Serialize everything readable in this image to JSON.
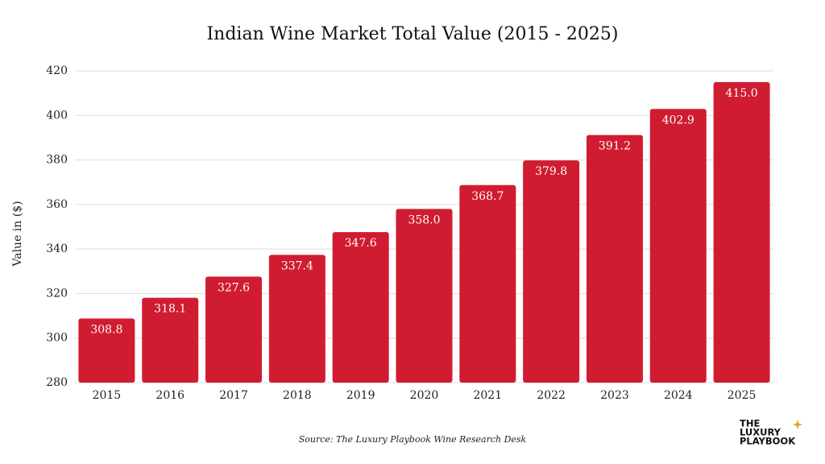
{
  "chart_data": {
    "type": "bar",
    "title": "Indian Wine Market Total Value (2015 - 2025)",
    "y_label": "Value in ($)",
    "source": "Source: The Luxury Playbook Wine Research Desk",
    "logo": [
      "THE",
      "LUXURY",
      "PLAYBOOK"
    ],
    "categories": [
      "2015",
      "2016",
      "2017",
      "2018",
      "2019",
      "2020",
      "2021",
      "2022",
      "2023",
      "2024",
      "2025"
    ],
    "values": [
      308.8,
      318.1,
      327.6,
      337.4,
      347.6,
      358.0,
      368.7,
      379.8,
      391.2,
      402.9,
      415.0
    ],
    "value_labels": [
      "308.8",
      "318.1",
      "327.6",
      "337.4",
      "347.6",
      "358.0",
      "368.7",
      "379.8",
      "391.2",
      "402.9",
      "415.0"
    ],
    "color": "#d01c31",
    "ylim": [
      280,
      420
    ],
    "yticks": [
      280,
      300,
      320,
      340,
      360,
      380,
      400,
      420
    ],
    "grid": true
  }
}
